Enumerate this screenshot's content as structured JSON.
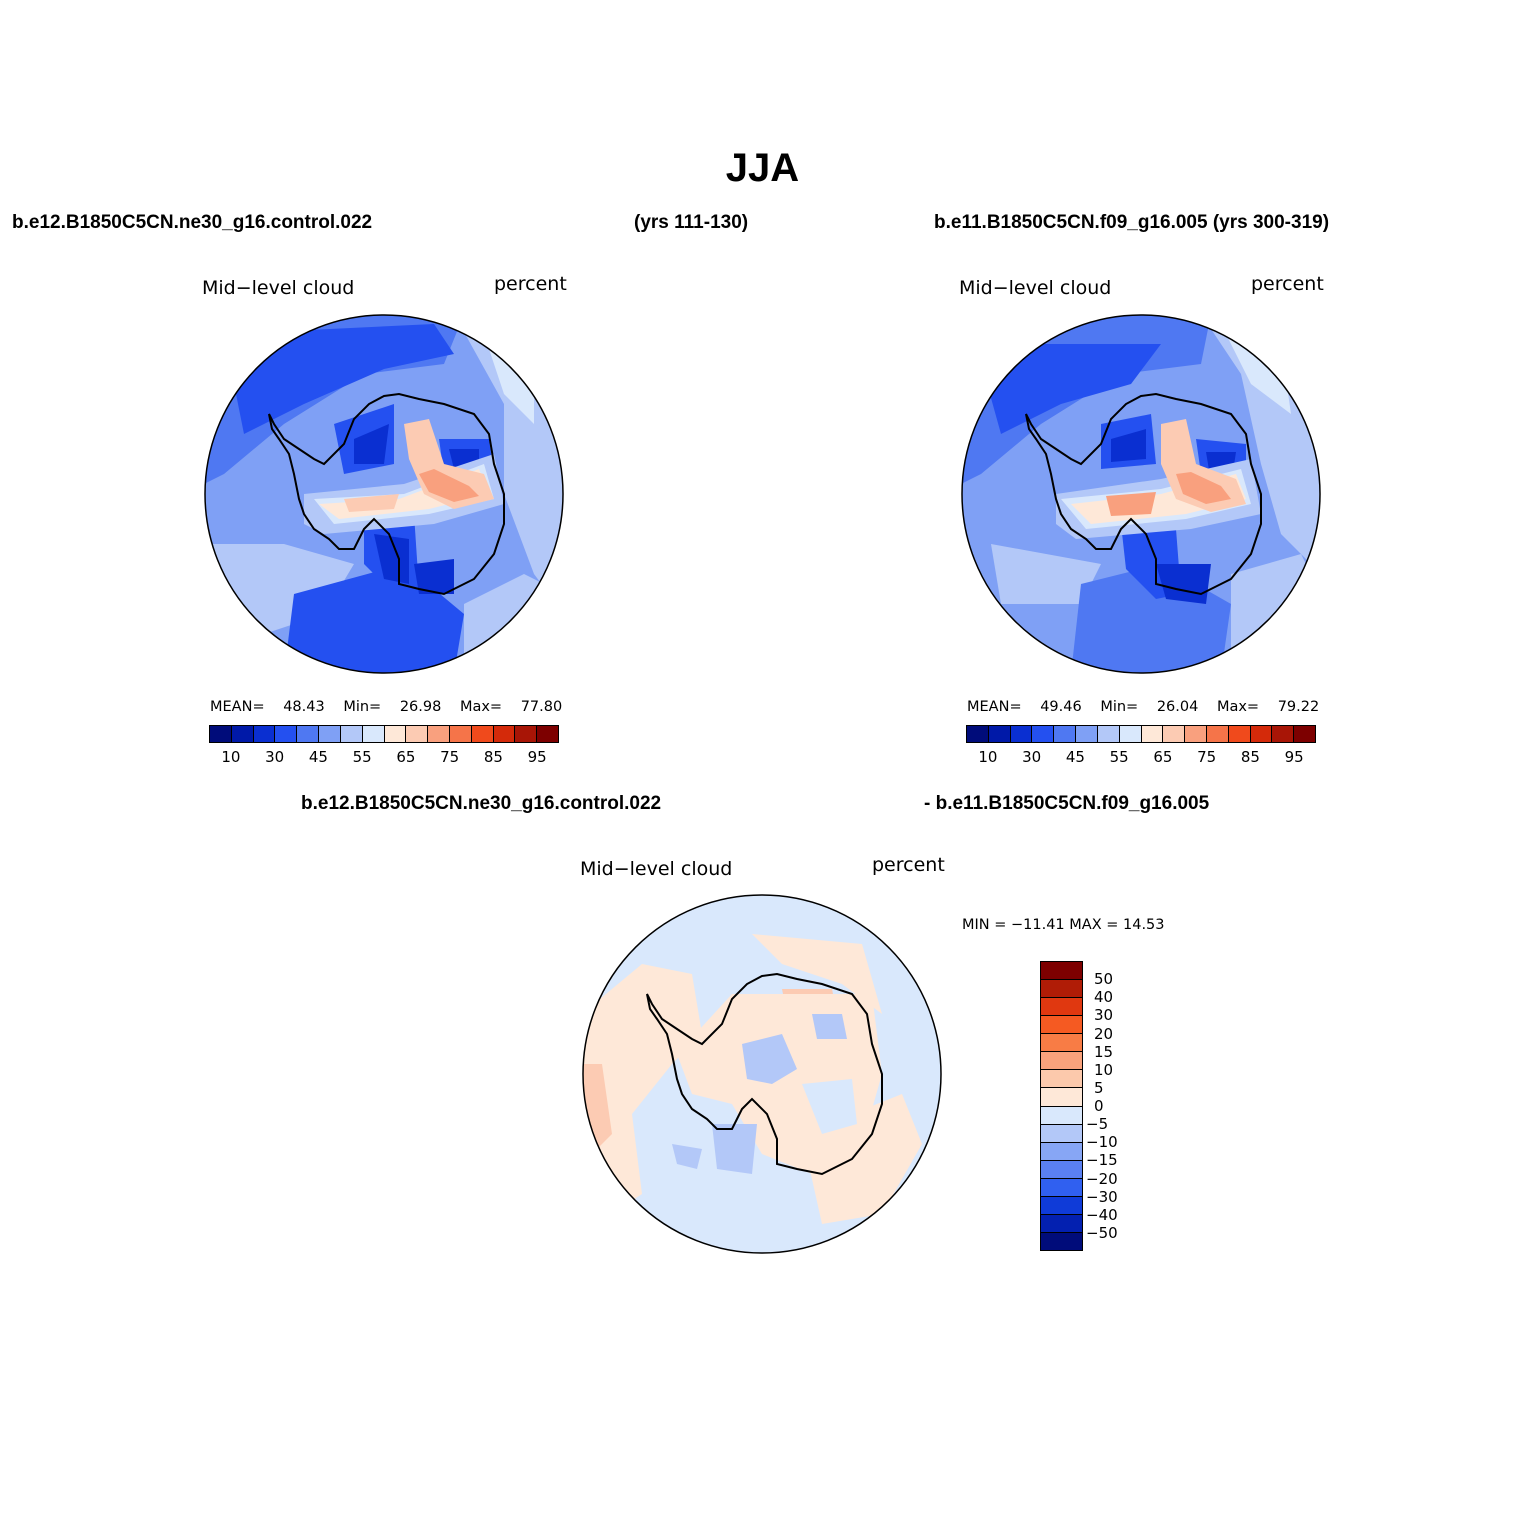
{
  "title": "JJA",
  "case1": {
    "name": "b.e12.B1850C5CN.ne30_g16.control.022",
    "years": "(yrs 111-130)"
  },
  "case2": {
    "name_years": "b.e11.B1850C5CN.f09_g16.005 (yrs 300-319)"
  },
  "panel1": {
    "label": "Mid−level cloud",
    "units": "percent",
    "mean_label": "MEAN=",
    "mean": "48.43",
    "min_label": "Min=",
    "min": "26.98",
    "max_label": "Max=",
    "max": "77.80"
  },
  "panel2": {
    "label": "Mid−level cloud",
    "units": "percent",
    "mean_label": "MEAN=",
    "mean": "49.46",
    "min_label": "Min=",
    "min": "26.04",
    "max_label": "Max=",
    "max": "79.22"
  },
  "colorbar_abs": {
    "colors": [
      "#000c7a",
      "#0019a8",
      "#0a2fd1",
      "#2450f0",
      "#4f78f2",
      "#7fa0f5",
      "#b3c8f8",
      "#d9e8fc",
      "#fee8d8",
      "#fccbb3",
      "#f9a07e",
      "#f57449",
      "#f04a1c",
      "#d42a0a",
      "#a81506",
      "#7d0000"
    ],
    "tick_labels": [
      "10",
      "30",
      "45",
      "55",
      "65",
      "75",
      "85",
      "95"
    ]
  },
  "diff": {
    "case_a": "b.e12.B1850C5CN.ne30_g16.control.022",
    "case_b": "- b.e11.B1850C5CN.f09_g16.005",
    "label": "Mid−level cloud",
    "units": "percent",
    "minmax": "MIN = −11.41  MAX =   14.53"
  },
  "colorbar_diff": {
    "colors_top_to_bottom": [
      "#7d0000",
      "#b01c06",
      "#e03810",
      "#f55a22",
      "#f87c45",
      "#f9a27c",
      "#fcc9ac",
      "#fee8d8",
      "#d9e8fc",
      "#b3c8f8",
      "#87a6f5",
      "#5a80f2",
      "#3060f0",
      "#0f3bd8",
      "#0320b0",
      "#000c7a"
    ],
    "tick_labels": [
      "50",
      "40",
      "30",
      "20",
      "15",
      "10",
      "5",
      "0",
      "−5",
      "−10",
      "−15",
      "−20",
      "−30",
      "−40",
      "−50"
    ]
  },
  "maps": {
    "region": "Antarctica (south polar stereographic)",
    "abs_field_colors": [
      "#2450f0",
      "#4f78f2",
      "#7fa0f5",
      "#b3c8f8",
      "#d9e8fc",
      "#fee8d8",
      "#fccbb3",
      "#f9a07e",
      "#0a2fd1"
    ],
    "diff_field_colors": [
      "#d9e8fc",
      "#fee8d8",
      "#fccbb3",
      "#b3c8f8"
    ]
  }
}
